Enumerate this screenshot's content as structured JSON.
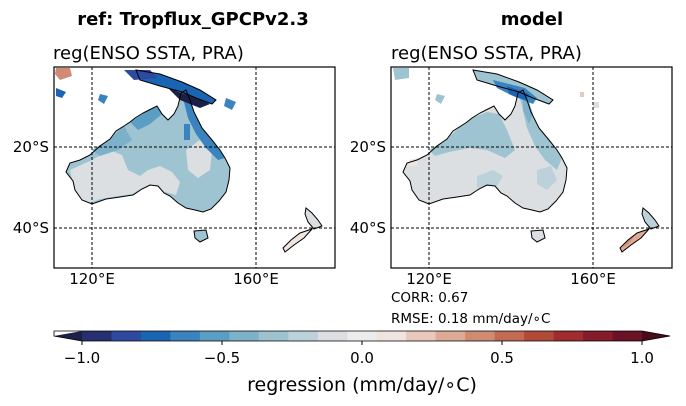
{
  "panels": [
    {
      "id": "ref",
      "suptitle": "ref: Tropflux_GPCPv2.3",
      "title": "reg(ENSO SSTA, PRA)"
    },
    {
      "id": "model",
      "suptitle": "model",
      "title": "reg(ENSO SSTA, PRA)",
      "stats": [
        "CORR: 0.67",
        "RMSE: 0.18 mm/day/∘C"
      ]
    }
  ],
  "colorbar": {
    "label": "regression (mm/day/∘C)",
    "ticks": [
      "−1.0",
      "−0.5",
      "0.0",
      "0.5",
      "1.0"
    ],
    "tick_values": [
      -1.0,
      -0.5,
      0.0,
      0.5,
      1.0
    ],
    "range": [
      -1.0,
      1.0
    ],
    "extend": "both",
    "colors": [
      "#1c1f46",
      "#263070",
      "#2d4aa0",
      "#1a64b4",
      "#3a83be",
      "#5c9dc4",
      "#7db1c9",
      "#9cc2d0",
      "#bdd1da",
      "#dcdfe2",
      "#ececec",
      "#f1e4e0",
      "#e8c8bd",
      "#ddaa98",
      "#d08b73",
      "#c26a52",
      "#b24a3a",
      "#9f2c2f",
      "#861b2b",
      "#6a1226",
      "#4a0b1a"
    ]
  },
  "chart_data": {
    "type": "map",
    "region": {
      "lon": [
        110,
        178
      ],
      "lat": [
        -50,
        1
      ]
    },
    "x_ticks": [
      "120°E",
      "160°E"
    ],
    "x_tick_values": [
      120,
      160
    ],
    "y_ticks": [
      "20°S",
      "40°S"
    ],
    "y_tick_values": [
      -20,
      -40
    ],
    "grid": "dashed"
  }
}
